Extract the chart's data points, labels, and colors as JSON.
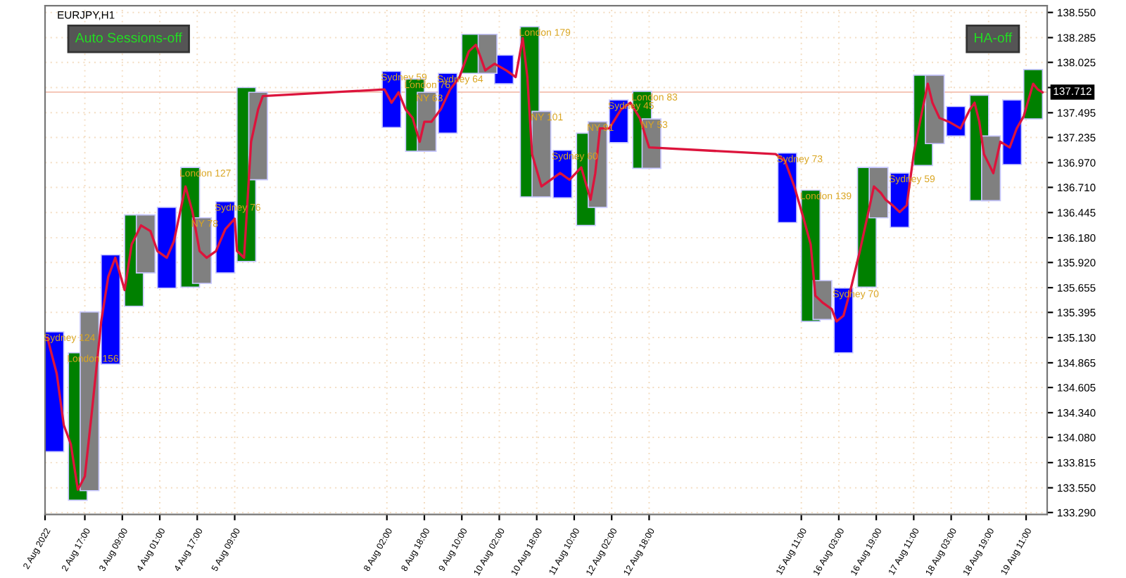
{
  "chart_data": {
    "type": "bar",
    "title": "EURJPY,H1",
    "annotations": [
      "Auto Sessions-off",
      "HA-off",
      {
        "text": "Sydney 124",
        "x": "2022-08-02T04:00",
        "y": 135.19
      },
      {
        "text": "London 156",
        "x": "2022-08-02T14:00",
        "y": 134.97
      },
      {
        "text": "London 127",
        "x": "2022-08-04T14:00",
        "y": 136.92
      },
      {
        "text": "NY 78",
        "x": "2022-08-04T19:00",
        "y": 136.39
      },
      {
        "text": "Sydney 76",
        "x": "2022-08-05T05:00",
        "y": 136.56
      },
      {
        "text": "Sydney 59",
        "x": "2022-08-08T04:00",
        "y": 137.93
      },
      {
        "text": "London 76",
        "x": "2022-08-08T14:00",
        "y": 137.85
      },
      {
        "text": "NY 63",
        "x": "2022-08-08T19:00",
        "y": 137.71
      },
      {
        "text": "Sydney 64",
        "x": "2022-08-09T04:00",
        "y": 137.91
      },
      {
        "text": "London 179",
        "x": "2022-08-10T15:00",
        "y": 138.4
      },
      {
        "text": "NY 101",
        "x": "2022-08-10T20:00",
        "y": 137.51
      },
      {
        "text": "Sydney 60",
        "x": "2022-08-11T05:00",
        "y": 137.1
      },
      {
        "text": "NY 91",
        "x": "2022-08-11T20:00",
        "y": 137.4
      },
      {
        "text": "Sydney 45",
        "x": "2022-08-12T05:00",
        "y": 137.63
      },
      {
        "text": "London 83",
        "x": "2022-08-12T15:00",
        "y": 137.72
      },
      {
        "text": "NY 53",
        "x": "2022-08-12T19:00",
        "y": 137.43
      },
      {
        "text": "Sydney 73",
        "x": "2022-08-15T05:00",
        "y": 137.07
      },
      {
        "text": "London 139",
        "x": "2022-08-15T15:00",
        "y": 136.68
      },
      {
        "text": "Sydney 70",
        "x": "2022-08-16T05:00",
        "y": 135.65
      },
      {
        "text": "Sydney 59",
        "x": "2022-08-17T05:00",
        "y": 136.86
      }
    ],
    "series": [
      {
        "color": "#0000ff",
        "x": [
          "2022-08-02T04:00",
          "2022-08-03T04:00",
          "2022-08-04T04:00",
          "2022-08-05T05:00",
          "2022-08-08T04:00",
          "2022-08-09T04:00",
          "2022-08-10T04:00",
          "2022-08-11T05:00",
          "2022-08-12T05:00",
          "2022-08-15T05:00",
          "2022-08-16T05:00",
          "2022-08-17T05:00",
          "2022-08-18T05:00",
          "2022-08-19T05:00"
        ],
        "base": [
          133.93,
          134.85,
          135.65,
          135.81,
          137.34,
          137.28,
          137.8,
          136.6,
          137.18,
          136.34,
          134.97,
          136.29,
          137.25,
          136.95
        ],
        "values": [
          1.26,
          1.15,
          0.85,
          0.75,
          0.59,
          0.63,
          0.3,
          0.5,
          0.45,
          0.73,
          0.68,
          0.57,
          0.31,
          0.68
        ]
      },
      {
        "color": "#008000",
        "x": [
          "2022-08-02T14:00",
          "2022-08-03T14:00",
          "2022-08-04T14:00",
          "2022-08-05T14:00",
          "2022-08-08T14:00",
          "2022-08-09T14:00",
          "2022-08-10T15:00",
          "2022-08-11T15:00",
          "2022-08-12T15:00",
          "2022-08-15T15:00",
          "2022-08-16T15:00",
          "2022-08-17T15:00",
          "2022-08-18T15:00",
          "2022-08-19T14:00"
        ],
        "base": [
          133.42,
          135.46,
          135.66,
          135.93,
          137.09,
          137.91,
          136.61,
          136.31,
          136.91,
          135.3,
          135.66,
          136.94,
          136.57,
          137.43
        ],
        "values": [
          1.55,
          0.96,
          1.26,
          1.83,
          0.76,
          0.41,
          1.79,
          0.97,
          0.81,
          1.38,
          1.26,
          0.95,
          1.11,
          0.52
        ]
      },
      {
        "color": "#808080",
        "x": [
          "2022-08-02T19:00",
          "2022-08-03T19:00",
          "2022-08-04T19:00",
          "2022-08-05T19:00",
          "2022-08-08T19:00",
          "2022-08-09T21:00",
          "2022-08-10T20:00",
          "2022-08-11T20:00",
          "2022-08-12T19:00",
          "2022-08-15T20:00",
          "2022-08-16T20:00",
          "2022-08-17T20:00",
          "2022-08-18T20:00"
        ],
        "base": [
          133.52,
          135.81,
          135.7,
          136.79,
          137.09,
          137.91,
          136.61,
          136.5,
          136.91,
          135.32,
          136.39,
          137.17,
          136.57
        ],
        "values": [
          1.88,
          0.61,
          0.69,
          0.92,
          0.62,
          0.41,
          0.9,
          0.9,
          0.52,
          0.41,
          0.53,
          0.72,
          0.68
        ]
      },
      {
        "type": "line",
        "color": "#dc143c",
        "x": [
          "2022-08-02T01:00",
          "2022-08-02T05:00",
          "2022-08-02T08:00",
          "2022-08-02T11:00",
          "2022-08-02T14:00",
          "2022-08-02T17:00",
          "2022-08-02T20:00",
          "2022-08-03T00:00",
          "2022-08-03T03:00",
          "2022-08-03T06:00",
          "2022-08-03T10:00",
          "2022-08-03T13:00",
          "2022-08-03T17:00",
          "2022-08-03T21:00",
          "2022-08-04T00:00",
          "2022-08-04T04:00",
          "2022-08-04T07:00",
          "2022-08-04T12:00",
          "2022-08-04T15:00",
          "2022-08-04T18:00",
          "2022-08-04T21:00",
          "2022-08-05T01:00",
          "2022-08-05T05:00",
          "2022-08-05T09:00",
          "2022-08-05T10:00",
          "2022-08-05T13:00",
          "2022-08-05T16:00",
          "2022-08-05T19:00",
          "2022-08-05T21:00",
          "2022-08-08T01:00",
          "2022-08-08T04:00",
          "2022-08-08T07:00",
          "2022-08-08T10:00",
          "2022-08-08T13:00",
          "2022-08-08T16:00",
          "2022-08-08T18:00",
          "2022-08-08T21:00",
          "2022-08-09T01:00",
          "2022-08-09T05:00",
          "2022-08-09T09:00",
          "2022-08-09T13:00",
          "2022-08-09T16:00",
          "2022-08-09T18:00",
          "2022-08-09T20:00",
          "2022-08-10T00:00",
          "2022-08-10T05:00",
          "2022-08-10T09:00",
          "2022-08-10T12:00",
          "2022-08-10T14:00",
          "2022-08-10T16:00",
          "2022-08-10T20:00",
          "2022-08-11T00:00",
          "2022-08-11T04:00",
          "2022-08-11T08:00",
          "2022-08-11T13:00",
          "2022-08-11T17:00",
          "2022-08-11T19:00",
          "2022-08-11T21:00",
          "2022-08-12T01:00",
          "2022-08-12T06:00",
          "2022-08-12T10:00",
          "2022-08-12T14:00",
          "2022-08-12T18:00",
          "2022-08-15T00:00",
          "2022-08-15T04:00",
          "2022-08-15T08:00",
          "2022-08-15T12:00",
          "2022-08-15T15:00",
          "2022-08-15T17:00",
          "2022-08-15T20:00",
          "2022-08-16T00:00",
          "2022-08-16T02:00",
          "2022-08-16T05:00",
          "2022-08-16T08:00",
          "2022-08-16T12:00",
          "2022-08-16T15:00",
          "2022-08-16T18:00",
          "2022-08-16T21:00",
          "2022-08-16T23:00",
          "2022-08-17T02:00",
          "2022-08-17T05:00",
          "2022-08-17T08:00",
          "2022-08-17T11:00",
          "2022-08-17T14:00",
          "2022-08-17T17:00",
          "2022-08-17T19:00",
          "2022-08-17T22:00",
          "2022-08-18T02:00",
          "2022-08-18T07:00",
          "2022-08-18T11:00",
          "2022-08-18T13:00",
          "2022-08-18T15:00",
          "2022-08-18T17:00",
          "2022-08-18T21:00",
          "2022-08-19T00:00",
          "2022-08-19T04:00",
          "2022-08-19T07:00",
          "2022-08-19T10:00",
          "2022-08-19T14:00",
          "2022-08-19T16:00",
          "2022-08-19T18:00"
        ],
        "values": [
          135.13,
          134.75,
          134.21,
          134.01,
          133.53,
          133.67,
          134.35,
          135.3,
          135.77,
          135.97,
          135.63,
          136.11,
          136.31,
          136.25,
          136.04,
          135.97,
          136.14,
          136.72,
          136.45,
          136.04,
          135.97,
          136.04,
          136.27,
          136.38,
          136.04,
          135.97,
          137.19,
          137.53,
          137.67,
          137.74,
          137.6,
          137.71,
          137.53,
          137.44,
          137.19,
          137.4,
          137.4,
          137.53,
          137.74,
          137.87,
          138.14,
          138.21,
          138.08,
          137.94,
          138.01,
          137.94,
          137.87,
          138.28,
          137.87,
          137.06,
          136.72,
          136.79,
          136.86,
          136.79,
          136.92,
          136.58,
          136.86,
          137.33,
          137.33,
          137.53,
          137.6,
          137.44,
          137.13,
          137.06,
          136.99,
          136.72,
          136.38,
          136.11,
          135.57,
          135.5,
          135.43,
          135.3,
          135.36,
          135.63,
          136.04,
          136.38,
          136.72,
          136.65,
          136.58,
          136.52,
          136.45,
          136.52,
          137.06,
          137.44,
          137.8,
          137.6,
          137.44,
          137.4,
          137.33,
          137.53,
          137.6,
          137.4,
          137.06,
          136.86,
          137.19,
          137.13,
          137.33,
          137.46,
          137.8,
          137.74,
          137.71
        ]
      }
    ],
    "ref_lines": [
      {
        "axis": "y",
        "value": 137.712,
        "label": "137.712",
        "color": "#f5c6b8"
      }
    ],
    "xlim": [
      "2022-08-02T00:00",
      "2022-08-19T20:00"
    ],
    "xticks": [
      {
        "value": "2022-08-02",
        "label": "2 Aug 2022"
      },
      {
        "value": "2022-08-02T17:00",
        "label": "2 Aug 17:00"
      },
      {
        "value": "2022-08-03T09:00",
        "label": "3 Aug 09:00"
      },
      {
        "value": "2022-08-04T01:00",
        "label": "4 Aug 01:00"
      },
      {
        "value": "2022-08-04T17:00",
        "label": "4 Aug 17:00"
      },
      {
        "value": "2022-08-05T09:00",
        "label": "5 Aug 09:00"
      },
      {
        "value": "2022-08-08T02:00",
        "label": "8 Aug 02:00"
      },
      {
        "value": "2022-08-08T18:00",
        "label": "8 Aug 18:00"
      },
      {
        "value": "2022-08-09T10:00",
        "label": "9 Aug 10:00"
      },
      {
        "value": "2022-08-10T02:00",
        "label": "10 Aug 02:00"
      },
      {
        "value": "2022-08-10T18:00",
        "label": "10 Aug 18:00"
      },
      {
        "value": "2022-08-11T10:00",
        "label": "11 Aug 10:00"
      },
      {
        "value": "2022-08-12T02:00",
        "label": "12 Aug 02:00"
      },
      {
        "value": "2022-08-12T18:00",
        "label": "12 Aug 18:00"
      },
      {
        "value": "2022-08-15T11:00",
        "label": "15 Aug 11:00"
      },
      {
        "value": "2022-08-16T03:00",
        "label": "16 Aug 03:00"
      },
      {
        "value": "2022-08-16T19:00",
        "label": "16 Aug 19:00"
      },
      {
        "value": "2022-08-17T11:00",
        "label": "17 Aug 11:00"
      },
      {
        "value": "2022-08-18T03:00",
        "label": "18 Aug 03:00"
      },
      {
        "value": "2022-08-18T19:00",
        "label": "18 Aug 19:00"
      },
      {
        "value": "2022-08-19T11:00",
        "label": "19 Aug 11:00"
      }
    ],
    "ylim": [
      133.27,
      138.62
    ],
    "yticks": [
      {
        "value": 138.55,
        "label": "138.550"
      },
      138.285,
      138.025,
      {
        "value": 137.76,
        "label": null
      },
      137.495,
      137.235,
      {
        "value": 136.97,
        "label": "136.970"
      },
      {
        "value": 136.71,
        "label": "136.710"
      },
      136.445,
      {
        "value": 136.18,
        "label": "136.180"
      },
      {
        "value": 135.92,
        "label": "135.920"
      },
      135.655,
      135.395,
      {
        "value": 135.13,
        "label": "135.130"
      },
      134.865,
      134.605,
      {
        "value": 134.34,
        "label": "134.340"
      },
      {
        "value": 134.08,
        "label": "134.080"
      },
      133.815,
      {
        "value": 133.55,
        "label": "133.550"
      },
      {
        "value": 133.29,
        "label": "133.290"
      }
    ],
    "grid": true
  }
}
